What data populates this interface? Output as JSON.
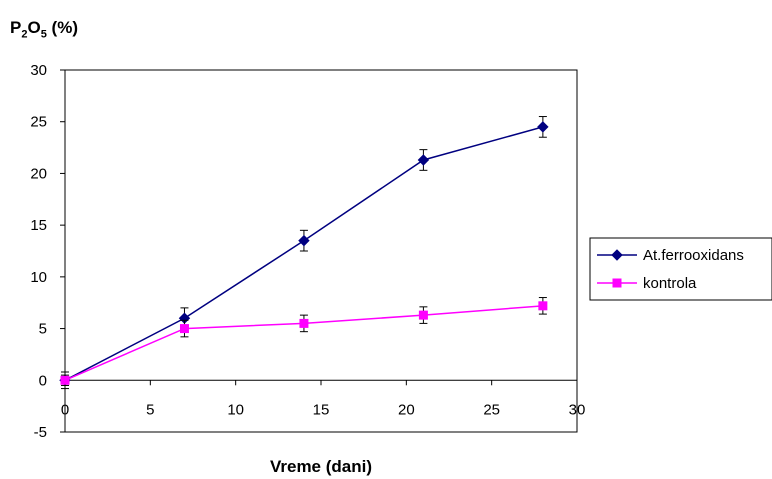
{
  "chart_data": {
    "type": "line",
    "title": "",
    "ylabel_main": "P",
    "ylabel_sub1": "2",
    "ylabel_mid": "O",
    "ylabel_sub2": "5",
    "ylabel_unit": " (%)",
    "xlabel": "Vreme (dani)",
    "xlim": [
      0,
      30
    ],
    "ylim": [
      -5,
      30
    ],
    "xticks": [
      0,
      5,
      10,
      15,
      20,
      25,
      30
    ],
    "yticks": [
      -5,
      0,
      5,
      10,
      15,
      20,
      25,
      30
    ],
    "grid": false,
    "legend_position": "right",
    "series": [
      {
        "name": "At.ferrooxidans",
        "color": "#000080",
        "marker": "diamond",
        "x": [
          0,
          7,
          14,
          21,
          28
        ],
        "y": [
          0,
          6.0,
          13.5,
          21.3,
          24.5
        ],
        "err": [
          0.8,
          1.0,
          1.0,
          1.0,
          1.0
        ]
      },
      {
        "name": "kontrola",
        "color": "#ff00ff",
        "marker": "square",
        "x": [
          0,
          7,
          14,
          21,
          28
        ],
        "y": [
          0,
          5.0,
          5.5,
          6.3,
          7.2
        ],
        "err": [
          0.5,
          0.8,
          0.8,
          0.8,
          0.8
        ]
      }
    ]
  }
}
